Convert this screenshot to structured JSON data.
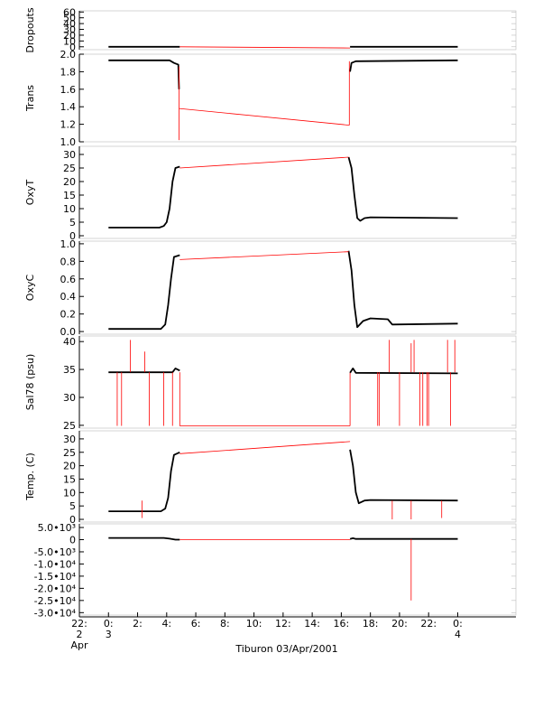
{
  "title": "Tiburon 03/Apr/2001",
  "colors": {
    "trace": "#000000",
    "gap": "#ff0000",
    "axis": "#000000",
    "frame": "#bbbbbb"
  },
  "x_axis": {
    "range_hours": [
      -2,
      28
    ],
    "ticks": [
      {
        "hour": -2,
        "lines": [
          "22:",
          "2",
          "Apr"
        ]
      },
      {
        "hour": 0,
        "lines": [
          "0:",
          "3"
        ]
      },
      {
        "hour": 2,
        "lines": [
          "2:"
        ]
      },
      {
        "hour": 4,
        "lines": [
          "4:"
        ]
      },
      {
        "hour": 6,
        "lines": [
          "6:"
        ]
      },
      {
        "hour": 8,
        "lines": [
          "8:"
        ]
      },
      {
        "hour": 10,
        "lines": [
          "10:"
        ]
      },
      {
        "hour": 12,
        "lines": [
          "12:"
        ]
      },
      {
        "hour": 14,
        "lines": [
          "14:"
        ]
      },
      {
        "hour": 16,
        "lines": [
          "16:"
        ]
      },
      {
        "hour": 18,
        "lines": [
          "18:"
        ]
      },
      {
        "hour": 20,
        "lines": [
          "20:"
        ]
      },
      {
        "hour": 22,
        "lines": [
          "22:"
        ]
      },
      {
        "hour": 24,
        "lines": [
          "0:",
          "4"
        ]
      }
    ]
  },
  "chart_data": [
    {
      "type": "line",
      "ylabel": "Dropouts",
      "ylim": [
        -5,
        62
      ],
      "ticks": [
        "60",
        "50",
        "40",
        "30",
        "20",
        "10",
        "0"
      ],
      "tick_values": [
        60,
        50,
        40,
        30,
        20,
        10,
        0
      ],
      "series": [
        {
          "role": "data",
          "segments": [
            [
              [
                0,
                0
              ],
              [
                4.9,
                0
              ]
            ],
            [
              [
                16.6,
                0
              ],
              [
                24,
                0
              ]
            ]
          ]
        },
        {
          "role": "gap",
          "segments": [
            [
              [
                4.9,
                0
              ],
              [
                16.6,
                -2
              ]
            ]
          ]
        }
      ]
    },
    {
      "type": "line",
      "ylabel": "Trans",
      "ylim": [
        1.0,
        2.0
      ],
      "ticks": [
        "2.0",
        "1.8",
        "1.6",
        "1.4",
        "1.2",
        "1.0"
      ],
      "tick_values": [
        2.0,
        1.8,
        1.6,
        1.4,
        1.2,
        1.0
      ],
      "series": [
        {
          "role": "data",
          "segments": [
            [
              [
                0,
                1.93
              ],
              [
                4.2,
                1.93
              ],
              [
                4.5,
                1.9
              ],
              [
                4.8,
                1.88
              ],
              [
                4.85,
                1.6
              ]
            ],
            [
              [
                16.6,
                1.8
              ],
              [
                16.7,
                1.9
              ],
              [
                17.0,
                1.92
              ],
              [
                24,
                1.93
              ]
            ]
          ]
        },
        {
          "role": "gap",
          "segments": [
            [
              [
                4.85,
                1.02
              ],
              [
                4.85,
                1.86
              ]
            ],
            [
              [
                4.85,
                1.38
              ],
              [
                16.55,
                1.19
              ]
            ],
            [
              [
                16.55,
                1.19
              ],
              [
                16.55,
                1.92
              ]
            ]
          ]
        }
      ]
    },
    {
      "type": "line",
      "ylabel": "OxyT",
      "ylim": [
        -1,
        33
      ],
      "ticks": [
        "30",
        "25",
        "20",
        "15",
        "10",
        "5",
        "0"
      ],
      "tick_values": [
        30,
        25,
        20,
        15,
        10,
        5,
        0
      ],
      "series": [
        {
          "role": "data",
          "segments": [
            [
              [
                0,
                3
              ],
              [
                3.5,
                3
              ],
              [
                3.8,
                3.6
              ],
              [
                4.0,
                5
              ],
              [
                4.2,
                10
              ],
              [
                4.4,
                20
              ],
              [
                4.6,
                25
              ],
              [
                4.9,
                25.5
              ]
            ],
            [
              [
                16.5,
                29
              ],
              [
                16.7,
                25
              ],
              [
                16.9,
                15
              ],
              [
                17.1,
                6.5
              ],
              [
                17.3,
                5.5
              ],
              [
                17.6,
                6.5
              ],
              [
                18,
                6.8
              ],
              [
                24,
                6.5
              ]
            ]
          ]
        },
        {
          "role": "gap",
          "segments": [
            [
              [
                4.9,
                25
              ],
              [
                16.5,
                29
              ]
            ]
          ]
        }
      ]
    },
    {
      "type": "line",
      "ylabel": "OxyC",
      "ylim": [
        -0.03,
        1.03
      ],
      "ticks": [
        "1.0",
        "0.8",
        "0.6",
        "0.4",
        "0.2",
        "0.0"
      ],
      "tick_values": [
        1.0,
        0.8,
        0.6,
        0.4,
        0.2,
        0.0
      ],
      "series": [
        {
          "role": "data",
          "segments": [
            [
              [
                0,
                0.03
              ],
              [
                3.6,
                0.03
              ],
              [
                3.9,
                0.08
              ],
              [
                4.1,
                0.3
              ],
              [
                4.3,
                0.6
              ],
              [
                4.5,
                0.85
              ],
              [
                4.9,
                0.87
              ]
            ],
            [
              [
                16.5,
                0.92
              ],
              [
                16.7,
                0.7
              ],
              [
                16.9,
                0.3
              ],
              [
                17.1,
                0.05
              ],
              [
                17.5,
                0.12
              ],
              [
                18,
                0.15
              ],
              [
                19.2,
                0.14
              ],
              [
                19.5,
                0.08
              ],
              [
                24,
                0.09
              ]
            ]
          ]
        },
        {
          "role": "gap",
          "segments": [
            [
              [
                4.9,
                0.82
              ],
              [
                16.5,
                0.91
              ]
            ]
          ]
        }
      ]
    },
    {
      "type": "line",
      "ylabel": "Sal78 (psu)",
      "ylim": [
        24.5,
        41
      ],
      "ticks": [
        "40",
        "35",
        "30",
        "25"
      ],
      "tick_values": [
        40,
        35,
        30,
        25
      ],
      "series": [
        {
          "role": "data",
          "segments": [
            [
              [
                0,
                34.5
              ],
              [
                4.4,
                34.5
              ],
              [
                4.6,
                35.2
              ],
              [
                4.9,
                34.8
              ]
            ],
            [
              [
                16.6,
                34.4
              ],
              [
                16.8,
                35.2
              ],
              [
                17.0,
                34.4
              ],
              [
                24,
                34.3
              ]
            ]
          ]
        },
        {
          "role": "gap",
          "segments": [
            [
              [
                4.9,
                34.5
              ],
              [
                4.9,
                24.9
              ]
            ],
            [
              [
                4.9,
                24.9
              ],
              [
                16.6,
                24.9
              ]
            ],
            [
              [
                16.6,
                24.9
              ],
              [
                16.6,
                34.4
              ]
            ]
          ]
        },
        {
          "role": "spikes",
          "baseline": 34.5,
          "values": [
            [
              0.6,
              24.9
            ],
            [
              0.9,
              24.9
            ],
            [
              1.5,
              40.3
            ],
            [
              2.5,
              38.2
            ],
            [
              2.8,
              24.9
            ],
            [
              3.8,
              24.9
            ],
            [
              4.4,
              24.9
            ],
            [
              18.5,
              24.9
            ],
            [
              18.6,
              24.9
            ],
            [
              19.3,
              40.3
            ],
            [
              20.0,
              24.9
            ],
            [
              20.8,
              39.7
            ],
            [
              21.0,
              40.3
            ],
            [
              21.4,
              24.9
            ],
            [
              21.6,
              24.9
            ],
            [
              21.9,
              24.9
            ],
            [
              22.0,
              24.9
            ],
            [
              23.3,
              40.3
            ],
            [
              23.5,
              24.9
            ],
            [
              23.8,
              40.3
            ]
          ]
        }
      ]
    },
    {
      "type": "line",
      "ylabel": "Temp. (C)",
      "ylim": [
        -1,
        33
      ],
      "ticks": [
        "30",
        "25",
        "20",
        "15",
        "10",
        "5",
        "0"
      ],
      "tick_values": [
        30,
        25,
        20,
        15,
        10,
        5,
        0
      ],
      "series": [
        {
          "role": "data",
          "segments": [
            [
              [
                0,
                3
              ],
              [
                3.6,
                3
              ],
              [
                3.9,
                4
              ],
              [
                4.1,
                8
              ],
              [
                4.3,
                18
              ],
              [
                4.5,
                24
              ],
              [
                4.9,
                25
              ]
            ],
            [
              [
                16.6,
                26
              ],
              [
                16.8,
                20
              ],
              [
                17.0,
                10
              ],
              [
                17.2,
                6
              ],
              [
                17.6,
                7
              ],
              [
                18,
                7.2
              ],
              [
                24,
                7
              ]
            ]
          ]
        },
        {
          "role": "gap",
          "segments": [
            [
              [
                4.9,
                24.5
              ],
              [
                16.6,
                29
              ]
            ]
          ]
        },
        {
          "role": "spikes",
          "baseline": 7,
          "values": [
            [
              2.3,
              0.5
            ],
            [
              19.5,
              0
            ],
            [
              20.8,
              0
            ],
            [
              22.9,
              0.5
            ]
          ]
        }
      ]
    },
    {
      "type": "line",
      "ylabel": "",
      "ylim": [
        -31000,
        6500
      ],
      "ticks": [
        "5.0•10³",
        "0",
        "-5.0•10³",
        "-1.0•10⁴",
        "-1.5•10⁴",
        "-2.0•10⁴",
        "-2.5•10⁴",
        "-3.0•10⁴"
      ],
      "tick_values": [
        5000,
        0,
        -5000,
        -10000,
        -15000,
        -20000,
        -25000,
        -30000
      ],
      "series": [
        {
          "role": "data",
          "segments": [
            [
              [
                0,
                700
              ],
              [
                3.8,
                700
              ],
              [
                4.2,
                400
              ],
              [
                4.6,
                0
              ],
              [
                4.9,
                0
              ]
            ],
            [
              [
                16.6,
                300
              ],
              [
                16.8,
                600
              ],
              [
                17.0,
                300
              ],
              [
                24,
                300
              ]
            ]
          ]
        },
        {
          "role": "gap",
          "segments": [
            [
              [
                4.9,
                0
              ],
              [
                16.6,
                0
              ]
            ]
          ]
        },
        {
          "role": "spikes",
          "baseline": 300,
          "values": [
            [
              20.8,
              -25000
            ]
          ]
        }
      ]
    }
  ]
}
